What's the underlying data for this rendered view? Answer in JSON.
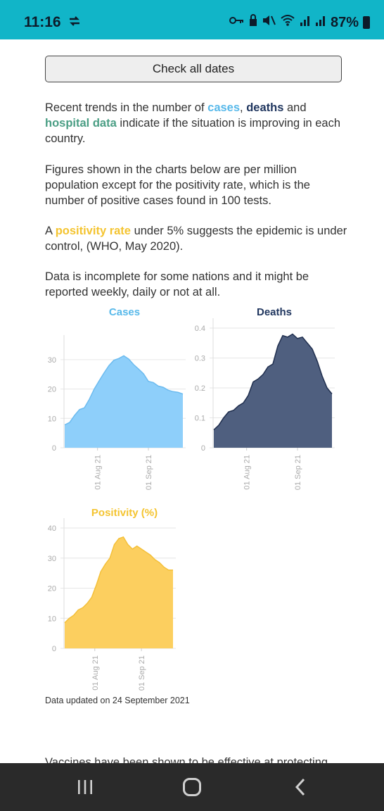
{
  "status_bar": {
    "time": "11:16",
    "battery": "87%",
    "icons": [
      "sync-icon",
      "key-icon",
      "lock-icon",
      "mute-icon",
      "wifi-icon",
      "signal-icon",
      "signal-roaming-icon",
      "battery-icon"
    ]
  },
  "content": {
    "check_dates_label": "Check all dates",
    "para1": {
      "pre": "Recent trends in the number of ",
      "cases": "cases",
      "comma": ", ",
      "deaths": "deaths",
      "and": " and ",
      "hospital": "hospital data",
      "post": " indicate if the situation is improving in each country."
    },
    "para2": "Figures shown in the charts below are per million population except for the positivity rate, which is the number of positive cases found in 100 tests.",
    "para3": {
      "pre": "A ",
      "positivity": "positivity rate",
      "post": " under 5% suggests the epidemic is under control, (WHO, May 2020)."
    },
    "para4": "Data is incomplete for some nations and it might be reported weekly, daily or not at all.",
    "updated": "Data updated on 24 September 2021",
    "cutoff_text": "Vaccines have been shown to be effective at protecting"
  },
  "chart_data": [
    {
      "type": "area",
      "title": "Cases",
      "color": "#8ecffa",
      "stroke": "#6cbbef",
      "title_color": "#58b9ea",
      "x_labels": [
        "01 Aug 21",
        "01 Sep 21"
      ],
      "yticks": [
        "0",
        "10",
        "20",
        "30"
      ],
      "ylim": [
        0,
        35
      ],
      "grid": true,
      "x": [
        "2021-07-12",
        "2021-07-15",
        "2021-07-18",
        "2021-07-21",
        "2021-07-24",
        "2021-07-27",
        "2021-07-30",
        "2021-08-02",
        "2021-08-05",
        "2021-08-08",
        "2021-08-11",
        "2021-08-14",
        "2021-08-17",
        "2021-08-20",
        "2021-08-23",
        "2021-08-26",
        "2021-08-29",
        "2021-09-01",
        "2021-09-04",
        "2021-09-07",
        "2021-09-10",
        "2021-09-13",
        "2021-09-16",
        "2021-09-19",
        "2021-09-22"
      ],
      "values": [
        7.8,
        8.6,
        11,
        13,
        13.6,
        16.5,
        20,
        22.8,
        25.5,
        28,
        29.8,
        30.4,
        31.3,
        30.2,
        28.3,
        26.8,
        25.2,
        22.6,
        22.2,
        21,
        20.6,
        19.6,
        19.1,
        18.9,
        18.3
      ]
    },
    {
      "type": "area",
      "title": "Deaths",
      "color": "#4f5f7f",
      "stroke": "#1f2e4e",
      "title_color": "#1f355e",
      "x_labels": [
        "01 Aug 21",
        "01 Sep 21"
      ],
      "yticks": [
        "0",
        "0.1",
        "0.2",
        "0.3",
        "0.4"
      ],
      "ylim": [
        0,
        0.4
      ],
      "grid": true,
      "x": [
        "2021-07-12",
        "2021-07-15",
        "2021-07-18",
        "2021-07-21",
        "2021-07-24",
        "2021-07-27",
        "2021-07-30",
        "2021-08-02",
        "2021-08-05",
        "2021-08-08",
        "2021-08-11",
        "2021-08-14",
        "2021-08-17",
        "2021-08-20",
        "2021-08-23",
        "2021-08-26",
        "2021-08-29",
        "2021-09-01",
        "2021-09-04",
        "2021-09-07",
        "2021-09-10",
        "2021-09-13",
        "2021-09-16",
        "2021-09-19",
        "2021-09-22"
      ],
      "values": [
        0.06,
        0.075,
        0.1,
        0.12,
        0.125,
        0.14,
        0.15,
        0.175,
        0.22,
        0.23,
        0.245,
        0.27,
        0.28,
        0.34,
        0.375,
        0.37,
        0.38,
        0.365,
        0.37,
        0.35,
        0.33,
        0.29,
        0.24,
        0.2,
        0.18
      ]
    },
    {
      "type": "area",
      "title": "Positivity (%)",
      "color": "#fccf5f",
      "stroke": "#f4c03a",
      "title_color": "#f4c430",
      "x_labels": [
        "01 Aug 21",
        "01 Sep 21"
      ],
      "yticks": [
        "0",
        "10",
        "20",
        "30",
        "40"
      ],
      "ylim": [
        0,
        40
      ],
      "grid": true,
      "x": [
        "2021-07-12",
        "2021-07-15",
        "2021-07-18",
        "2021-07-21",
        "2021-07-24",
        "2021-07-27",
        "2021-07-30",
        "2021-08-02",
        "2021-08-05",
        "2021-08-08",
        "2021-08-11",
        "2021-08-14",
        "2021-08-17",
        "2021-08-20",
        "2021-08-23",
        "2021-08-26",
        "2021-08-29",
        "2021-09-01",
        "2021-09-04",
        "2021-09-07",
        "2021-09-10",
        "2021-09-13",
        "2021-09-16",
        "2021-09-19",
        "2021-09-22"
      ],
      "values": [
        8.5,
        10,
        11,
        12.8,
        13.5,
        15,
        17,
        21,
        25.5,
        28,
        30,
        34.5,
        36.5,
        37,
        34.5,
        33,
        34,
        33,
        32,
        31,
        29.5,
        28.5,
        27,
        26,
        26
      ]
    }
  ],
  "nav_bar": {
    "recents": "recents-icon",
    "home": "home-icon",
    "back": "back-icon"
  }
}
